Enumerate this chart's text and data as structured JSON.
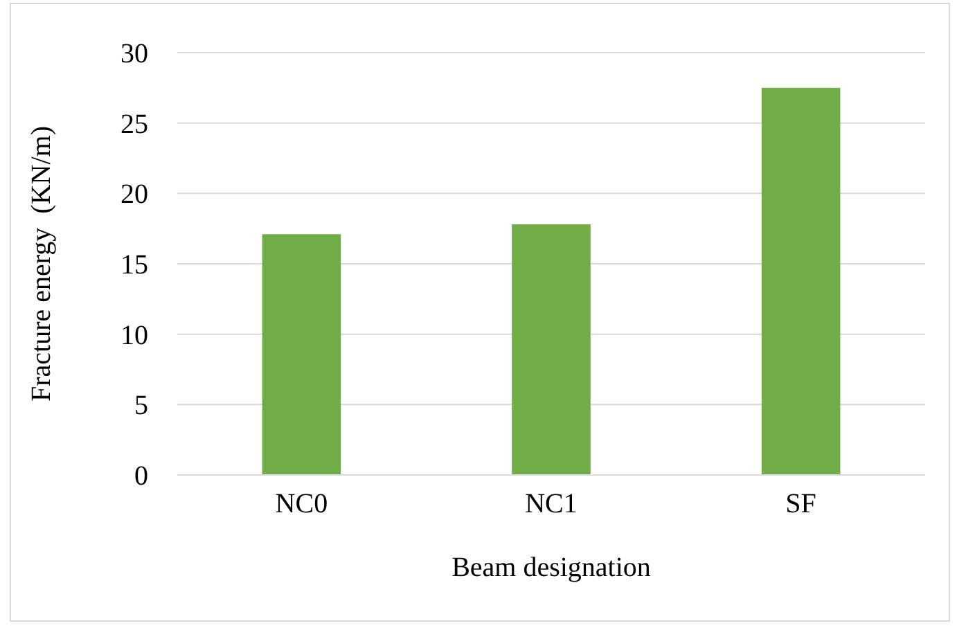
{
  "chart_data": {
    "type": "bar",
    "xlabel": "Beam designation",
    "ylabel": "Fracture energy  (KN/m)",
    "categories": [
      "NC0",
      "NC1",
      "SF"
    ],
    "values": [
      17.1,
      17.8,
      27.5
    ],
    "color": "#70ad47",
    "ylim": [
      0,
      30
    ],
    "yticks": [
      0,
      5,
      10,
      15,
      20,
      25,
      30
    ],
    "grid": "y"
  }
}
